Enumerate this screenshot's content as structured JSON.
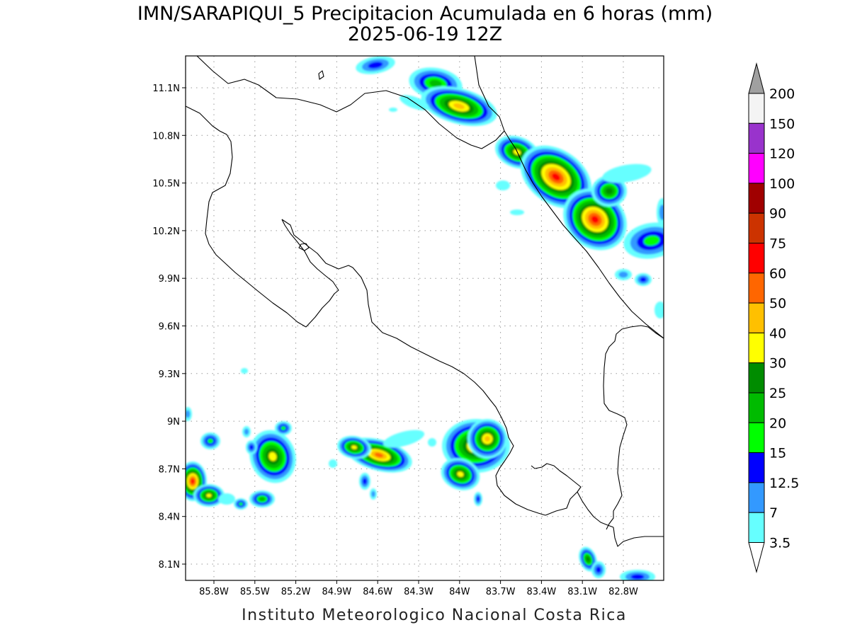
{
  "header": {
    "title_line1": "IMN/SARAPIQUI_5 Precipitacion Acumulada en 6 horas (mm)",
    "title_line2": "2025-06-19 12Z"
  },
  "axes": {
    "lat_ticks": [
      "11.1N",
      "10.8N",
      "10.5N",
      "10.2N",
      "9.9N",
      "9.6N",
      "9.3N",
      "9N",
      "8.7N",
      "8.4N",
      "8.1N"
    ],
    "lon_ticks": [
      "85.8W",
      "85.5W",
      "85.2W",
      "84.9W",
      "84.6W",
      "84.3W",
      "84W",
      "83.7W",
      "83.4W",
      "83.1W",
      "82.8W"
    ]
  },
  "legend": {
    "levels": [
      {
        "label": "200",
        "color": "#f4f4f4"
      },
      {
        "label": "150",
        "color": "#9933cc"
      },
      {
        "label": "120",
        "color": "#ff00ff"
      },
      {
        "label": "100",
        "color": "#a00000"
      },
      {
        "label": "90",
        "color": "#cc3300"
      },
      {
        "label": "75",
        "color": "#ff0000"
      },
      {
        "label": "60",
        "color": "#ff6600"
      },
      {
        "label": "50",
        "color": "#ffc000"
      },
      {
        "label": "40",
        "color": "#ffff00"
      },
      {
        "label": "30",
        "color": "#008c00"
      },
      {
        "label": "25",
        "color": "#00bb00"
      },
      {
        "label": "20",
        "color": "#00ff00"
      },
      {
        "label": "15",
        "color": "#0000ff"
      },
      {
        "label": "12.5",
        "color": "#3399ff"
      },
      {
        "label": "7",
        "color": "#66ffff"
      },
      {
        "label": "3.5",
        "color": null
      }
    ],
    "top_arrow_color": "#a0a0a0",
    "bottom_arrow_color": "#ffffff"
  },
  "footer": {
    "credit": "Instituto Meteorologico Nacional Costa Rica"
  }
}
